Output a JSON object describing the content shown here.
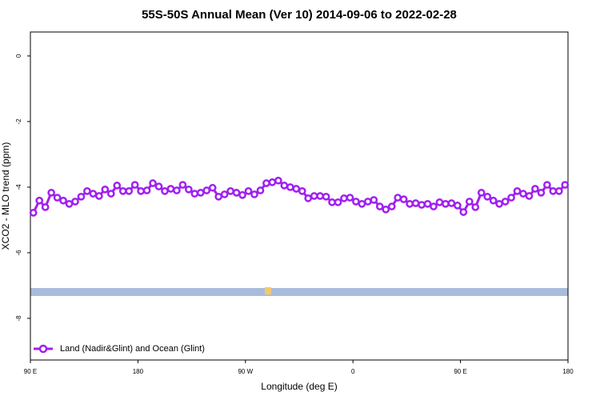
{
  "chart_data": {
    "type": "line",
    "title": "55S-50S Annual Mean (Ver 10)   2014-09-06 to 2022-02-28",
    "x_label": "Longitude (deg E)",
    "y_label": "XCO2 - MLO trend (ppm)",
    "xlim": [
      90,
      540
    ],
    "ylim": [
      -9.27,
      0.73
    ],
    "xticks": [
      {
        "value": 90,
        "label": "90 E"
      },
      180,
      {
        "value": 270,
        "label": "90 W"
      },
      {
        "value": 360,
        "label": "0"
      },
      {
        "value": 450,
        "label": "90 E"
      },
      {
        "value": 540,
        "label": "180"
      }
    ],
    "yticks": [
      0,
      -2,
      -4,
      -6,
      -8
    ],
    "legend": "bottom-left",
    "series": [
      {
        "name": "Land (Nadir&Glint) and Ocean (Glint)",
        "color": "#a020f0",
        "x": [
          92.5,
          97.5,
          102.5,
          107.5,
          112.5,
          117.5,
          122.5,
          127.5,
          132.5,
          137.5,
          142.5,
          147.5,
          152.5,
          157.5,
          162.5,
          167.5,
          172.5,
          177.5,
          182.5,
          187.5,
          192.5,
          197.5,
          202.5,
          207.5,
          212.5,
          217.5,
          222.5,
          227.5,
          232.5,
          237.5,
          242.5,
          247.5,
          252.5,
          257.5,
          262.5,
          267.5,
          272.5,
          277.5,
          282.5,
          287.5,
          292.5,
          297.5,
          302.5,
          307.5,
          312.5,
          317.5,
          322.5,
          327.5,
          332.5,
          337.5,
          342.5,
          347.5,
          352.5,
          357.5,
          362.5,
          367.5,
          372.5,
          377.5,
          382.5,
          387.5,
          392.5,
          397.5,
          402.5,
          407.5,
          412.5,
          417.5,
          422.5,
          427.5,
          432.5,
          437.5,
          442.5,
          447.5,
          452.5,
          457.5,
          462.5,
          467.5,
          472.5,
          477.5,
          482.5,
          487.5,
          492.5,
          497.5,
          502.5,
          507.5,
          512.5,
          517.5,
          522.5,
          527.5,
          532.5,
          537.5
        ],
        "values": [
          -4.78,
          -4.41,
          -4.61,
          -4.17,
          -4.32,
          -4.41,
          -4.51,
          -4.44,
          -4.29,
          -4.12,
          -4.2,
          -4.27,
          -4.07,
          -4.2,
          -3.95,
          -4.12,
          -4.12,
          -3.93,
          -4.12,
          -4.1,
          -3.88,
          -3.98,
          -4.12,
          -4.05,
          -4.1,
          -3.93,
          -4.07,
          -4.2,
          -4.17,
          -4.1,
          -4.02,
          -4.29,
          -4.22,
          -4.12,
          -4.17,
          -4.24,
          -4.12,
          -4.22,
          -4.1,
          -3.88,
          -3.85,
          -3.8,
          -3.95,
          -4.0,
          -4.05,
          -4.12,
          -4.34,
          -4.27,
          -4.27,
          -4.29,
          -4.46,
          -4.46,
          -4.34,
          -4.32,
          -4.44,
          -4.51,
          -4.44,
          -4.39,
          -4.59,
          -4.68,
          -4.59,
          -4.32,
          -4.37,
          -4.51,
          -4.49,
          -4.54,
          -4.51,
          -4.59,
          -4.46,
          -4.51,
          -4.49,
          -4.56,
          -4.76,
          -4.44,
          -4.61,
          -4.17,
          -4.29,
          -4.41,
          -4.51,
          -4.44,
          -4.32,
          -4.12,
          -4.2,
          -4.27,
          -4.05,
          -4.17,
          -3.93,
          -4.12,
          -4.12,
          -3.93
        ]
      }
    ]
  }
}
